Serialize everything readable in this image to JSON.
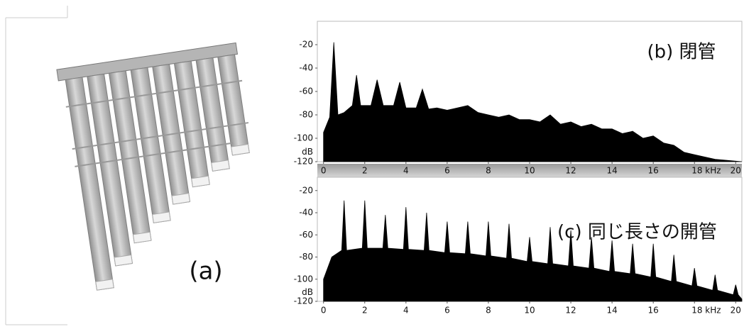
{
  "figure_label": "(a)",
  "chart_data": [
    {
      "type": "area",
      "title": "(b) 閉管",
      "ylabel": "dB",
      "color": "#000000",
      "x": [
        0,
        0.3,
        0.5,
        0.7,
        1.0,
        1.4,
        1.6,
        1.8,
        2.3,
        2.6,
        2.9,
        3.4,
        3.7,
        4.0,
        4.5,
        4.8,
        5.1,
        5.5,
        6.0,
        6.5,
        7.0,
        7.5,
        8.0,
        8.5,
        9.0,
        9.5,
        10.0,
        10.5,
        11.0,
        11.5,
        12.0,
        12.5,
        13.0,
        13.5,
        14.0,
        14.5,
        15.0,
        15.5,
        16.0,
        16.5,
        17.0,
        17.5,
        18.0,
        18.5,
        19.0,
        20.3
      ],
      "values": [
        -95,
        -82,
        -18,
        -80,
        -78,
        -72,
        -46,
        -72,
        -72,
        -50,
        -72,
        -72,
        -52,
        -74,
        -74,
        -58,
        -75,
        -74,
        -76,
        -74,
        -72,
        -78,
        -80,
        -82,
        -80,
        -84,
        -84,
        -86,
        -80,
        -88,
        -86,
        -90,
        -88,
        -92,
        -92,
        -96,
        -94,
        -100,
        -98,
        -104,
        -106,
        -112,
        -114,
        -116,
        -118,
        -120
      ],
      "xlim": [
        -0.3,
        20.3
      ],
      "ylim": [
        -120,
        0
      ],
      "xticks": [
        0,
        2,
        4,
        6,
        8,
        10,
        12,
        14,
        16,
        {
          "value": 18,
          "label": "18 kHz"
        },
        20
      ],
      "yticks": [
        -20,
        -40,
        -60,
        -80,
        -100,
        -120
      ]
    },
    {
      "type": "area",
      "title": "(c) 同じ長さの開管",
      "ylabel": "dB",
      "color": "#000000",
      "x": [
        0,
        0.4,
        0.88,
        1,
        1.12,
        1.88,
        2,
        2.12,
        2.88,
        3,
        3.12,
        3.88,
        4,
        4.12,
        4.88,
        5,
        5.12,
        5.88,
        6,
        6.12,
        6.88,
        7,
        7.12,
        7.88,
        8,
        8.12,
        8.88,
        9,
        9.12,
        9.88,
        10,
        10.12,
        10.88,
        11,
        11.12,
        11.88,
        12,
        12.12,
        12.88,
        13,
        13.12,
        13.88,
        14,
        14.12,
        14.88,
        15,
        15.12,
        15.88,
        16,
        16.12,
        16.88,
        17,
        17.12,
        17.88,
        18,
        18.12,
        18.88,
        19,
        19.12,
        19.88,
        20,
        20.12,
        20.3
      ],
      "values": [
        -100,
        -80,
        -74,
        -29,
        -74,
        -72,
        -29,
        -72,
        -72,
        -42,
        -72,
        -73,
        -35,
        -73,
        -74,
        -40,
        -74,
        -76,
        -48,
        -76,
        -77,
        -48,
        -77,
        -79,
        -48,
        -79,
        -81,
        -50,
        -81,
        -84,
        -62,
        -84,
        -86,
        -53,
        -86,
        -88,
        -56,
        -88,
        -90,
        -62,
        -90,
        -93,
        -65,
        -93,
        -95,
        -68,
        -95,
        -98,
        -68,
        -98,
        -102,
        -78,
        -102,
        -106,
        -90,
        -106,
        -110,
        -96,
        -110,
        -114,
        -105,
        -114,
        -118
      ],
      "xlim": [
        -0.3,
        20.3
      ],
      "ylim": [
        -120,
        -8
      ],
      "xticks": [
        0,
        2,
        4,
        6,
        8,
        10,
        12,
        14,
        16,
        {
          "value": 18,
          "label": "18 kHz"
        },
        20
      ],
      "yticks": [
        -20,
        -40,
        -60,
        -80,
        -100,
        -120
      ]
    }
  ]
}
